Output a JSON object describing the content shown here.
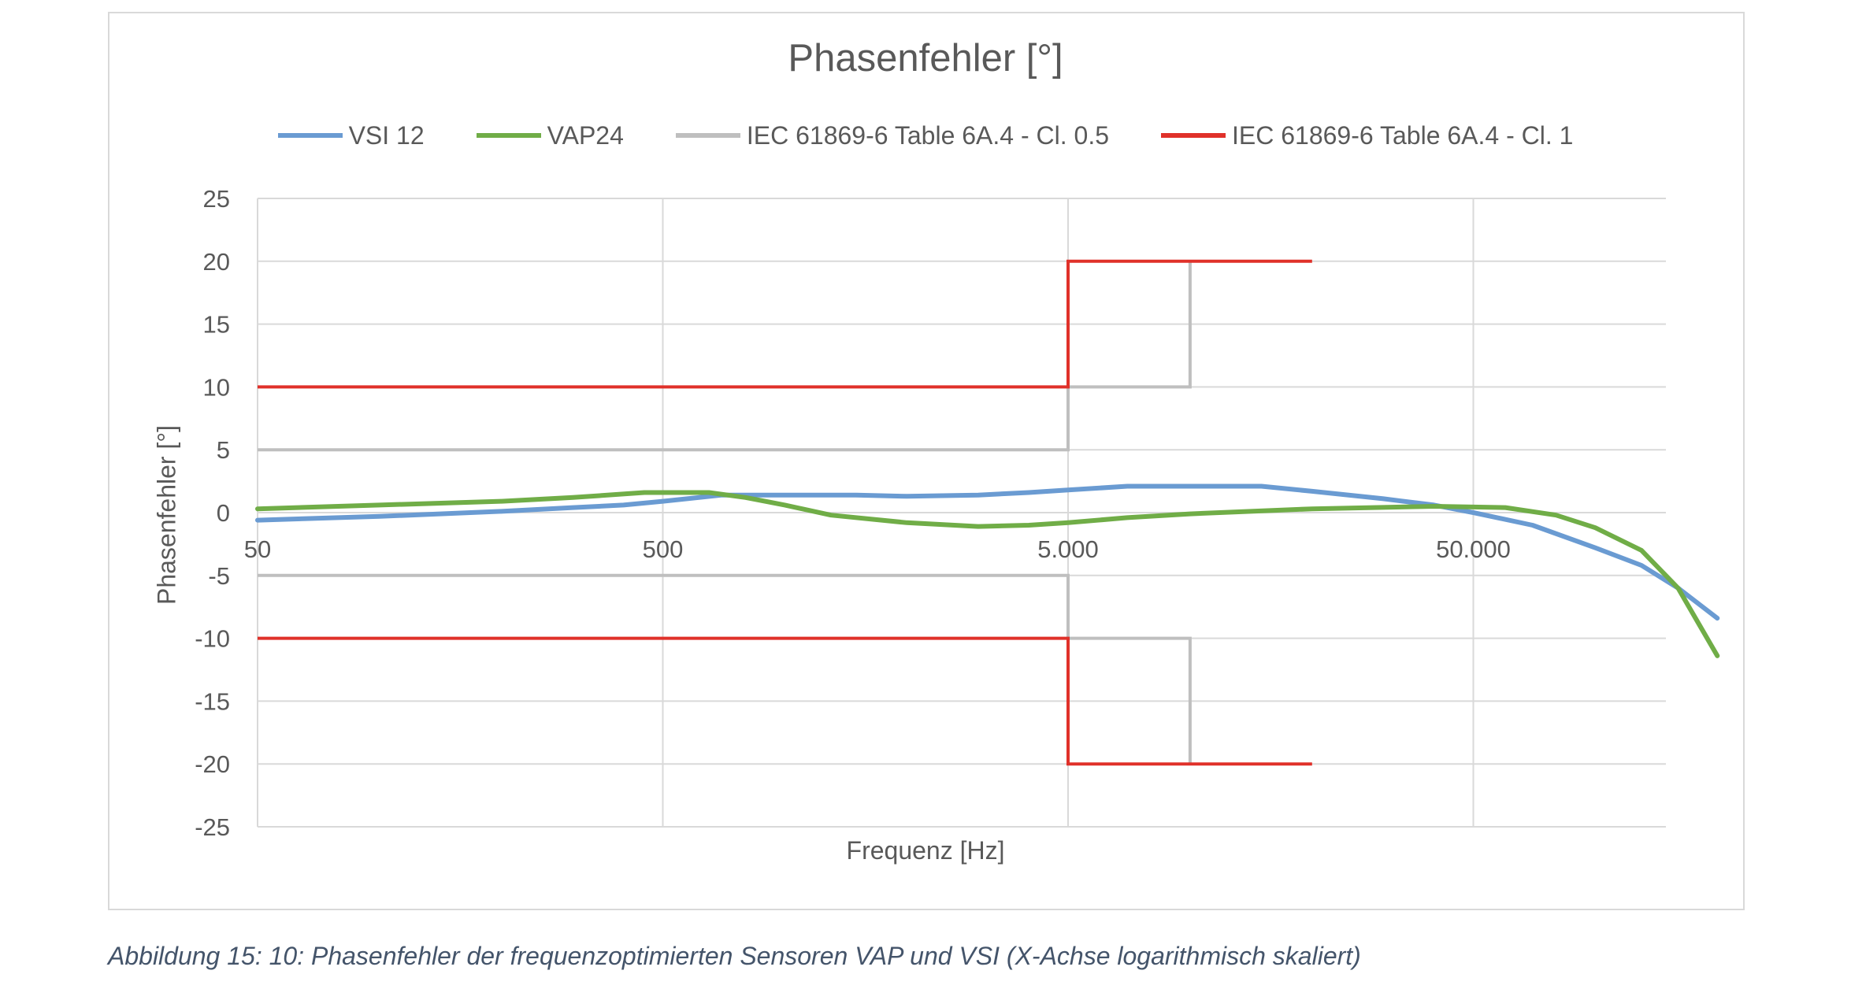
{
  "caption": "Abbildung 15: 10: Phasenfehler der frequenzoptimierten Sensoren VAP und VSI (X-Achse logarithmisch skaliert)",
  "chart_data": {
    "type": "line",
    "title": "Phasenfehler [°]",
    "xlabel": "Frequenz [Hz]",
    "ylabel": "Phasenfehler [°]",
    "x_scale": "log",
    "xlim": [
      50,
      200000
    ],
    "ylim": [
      -25,
      25
    ],
    "x_ticks": [
      50,
      500,
      5000,
      50000
    ],
    "x_tick_labels": [
      "50",
      "500",
      "5.000",
      "50.000"
    ],
    "y_ticks": [
      25,
      20,
      15,
      10,
      5,
      0,
      -5,
      -10,
      -15,
      -20,
      -25
    ],
    "grid": true,
    "legend_position": "top",
    "series": [
      {
        "name": "VSI 12",
        "color": "#6a9bd2",
        "width": 6,
        "x": [
          50,
          100,
          200,
          300,
          400,
          500,
          700,
          1000,
          1500,
          2000,
          3000,
          4000,
          5000,
          7000,
          10000,
          15000,
          20000,
          30000,
          40000,
          50000,
          70000,
          100000,
          130000,
          160000,
          200000
        ],
        "y": [
          -0.6,
          -0.3,
          0.1,
          0.4,
          0.6,
          0.9,
          1.4,
          1.4,
          1.4,
          1.3,
          1.4,
          1.6,
          1.8,
          2.1,
          2.1,
          2.1,
          1.7,
          1.1,
          0.6,
          0.0,
          -1.0,
          -2.8,
          -4.2,
          -6.0,
          -8.4
        ]
      },
      {
        "name": "VAP24",
        "color": "#70ad47",
        "width": 6,
        "x": [
          50,
          100,
          200,
          300,
          450,
          650,
          800,
          1000,
          1300,
          2000,
          3000,
          4000,
          5000,
          7000,
          10000,
          20000,
          40000,
          60000,
          80000,
          100000,
          130000,
          160000,
          200000
        ],
        "y": [
          0.3,
          0.6,
          0.9,
          1.2,
          1.6,
          1.6,
          1.2,
          0.6,
          -0.2,
          -0.8,
          -1.1,
          -1.0,
          -0.8,
          -0.4,
          -0.1,
          0.3,
          0.5,
          0.4,
          -0.2,
          -1.2,
          -3.0,
          -6.0,
          -11.4
        ]
      },
      {
        "name": "IEC 61869-6 Table 6A.4 - Cl. 0.5",
        "color": "#bfbfbf",
        "width": 4,
        "segments": [
          {
            "x": [
              50,
              5000,
              5000,
              10000,
              10000
            ],
            "y": [
              5,
              5,
              10,
              10,
              20
            ]
          },
          {
            "x": [
              50,
              5000,
              5000,
              10000,
              10000
            ],
            "y": [
              -5,
              -5,
              -10,
              -10,
              -20
            ]
          }
        ]
      },
      {
        "name": "IEC 61869-6 Table 6A.4 - Cl. 1",
        "color": "#e0312a",
        "width": 4,
        "segments": [
          {
            "x": [
              50,
              5000,
              5000,
              20000
            ],
            "y": [
              10,
              10,
              20,
              20
            ]
          },
          {
            "x": [
              50,
              5000,
              5000,
              20000
            ],
            "y": [
              -10,
              -10,
              -20,
              -20
            ]
          }
        ]
      }
    ]
  }
}
